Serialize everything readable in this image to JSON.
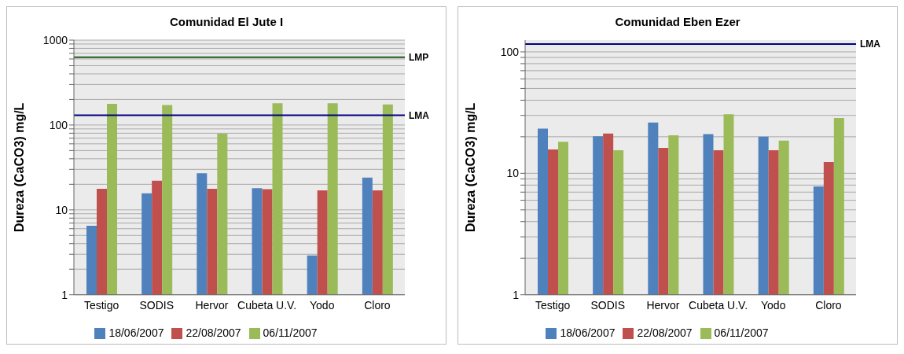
{
  "chart_data": [
    {
      "type": "bar",
      "title": "Comunidad El Jute I",
      "ylabel": "Dureza (CaCO3) mg/L",
      "categories": [
        "Testigo",
        "SODIS",
        "Hervor",
        "Cubeta U.V.",
        "Yodo",
        "Cloro"
      ],
      "series": [
        {
          "name": "18/06/2007",
          "color": "#4f81bd",
          "values": [
            6.5,
            15.7,
            27,
            18,
            2.9,
            24
          ]
        },
        {
          "name": "22/08/2007",
          "color": "#c0504d",
          "values": [
            17.7,
            22,
            17.7,
            17.5,
            17,
            17
          ]
        },
        {
          "name": "06/11/2007",
          "color": "#9bbb59",
          "values": [
            178,
            172,
            79,
            180,
            180,
            175
          ]
        }
      ],
      "log": "y",
      "ylim": [
        1,
        1000
      ],
      "yticks": [
        1,
        {
          "value": 2,
          "label": null
        },
        {
          "value": 3,
          "label": null
        },
        {
          "value": 4,
          "label": null
        },
        {
          "value": 5,
          "label": null
        },
        {
          "value": 6,
          "label": null
        },
        {
          "value": 7,
          "label": null
        },
        {
          "value": 8,
          "label": null
        },
        {
          "value": 9,
          "label": null
        },
        10,
        {
          "value": 20,
          "label": null
        },
        {
          "value": 30,
          "label": null
        },
        {
          "value": 40,
          "label": null
        },
        {
          "value": 50,
          "label": null
        },
        {
          "value": 60,
          "label": null
        },
        {
          "value": 70,
          "label": null
        },
        {
          "value": 80,
          "label": null
        },
        {
          "value": 90,
          "label": null
        },
        100,
        {
          "value": 200,
          "label": null
        },
        {
          "value": 300,
          "label": null
        },
        {
          "value": 400,
          "label": null
        },
        {
          "value": 500,
          "label": null
        },
        {
          "value": 600,
          "label": null
        },
        {
          "value": 700,
          "label": null
        },
        {
          "value": 800,
          "label": null
        },
        {
          "value": 900,
          "label": null
        },
        1000
      ],
      "ref_lines": [
        {
          "axis": "y",
          "value": 630,
          "label": "LMP",
          "color": "#1e5c1e"
        },
        {
          "axis": "y",
          "value": 130,
          "label": "LMA",
          "color": "#000080"
        }
      ],
      "grid": "y",
      "legend": "bottom"
    },
    {
      "type": "bar",
      "title": "Comunidad Eben Ezer",
      "ylabel": "Dureza (CaCO3) mg/L",
      "categories": [
        "Testigo",
        "SODIS",
        "Hervor",
        "Cubeta U.V.",
        "Yodo",
        "Cloro"
      ],
      "series": [
        {
          "name": "18/06/2007",
          "color": "#4f81bd",
          "values": [
            23.3,
            20.2,
            26.2,
            21,
            20,
            7.8
          ]
        },
        {
          "name": "22/08/2007",
          "color": "#c0504d",
          "values": [
            15.7,
            21.3,
            16.2,
            15.5,
            15.5,
            12.4
          ]
        },
        {
          "name": "06/11/2007",
          "color": "#9bbb59",
          "values": [
            18.2,
            15.5,
            20.6,
            30.6,
            18.6,
            28.6
          ]
        }
      ],
      "log": "y",
      "ylim": [
        1,
        125
      ],
      "yticks": [
        1,
        {
          "value": 2,
          "label": null
        },
        {
          "value": 3,
          "label": null
        },
        {
          "value": 4,
          "label": null
        },
        {
          "value": 5,
          "label": null
        },
        {
          "value": 6,
          "label": null
        },
        {
          "value": 7,
          "label": null
        },
        {
          "value": 8,
          "label": null
        },
        {
          "value": 9,
          "label": null
        },
        10,
        {
          "value": 20,
          "label": null
        },
        {
          "value": 30,
          "label": null
        },
        {
          "value": 40,
          "label": null
        },
        {
          "value": 50,
          "label": null
        },
        {
          "value": 60,
          "label": null
        },
        {
          "value": 70,
          "label": null
        },
        {
          "value": 80,
          "label": null
        },
        {
          "value": 90,
          "label": null
        },
        100
      ],
      "ref_lines": [
        {
          "axis": "y",
          "value": 116,
          "label": "LMA",
          "color": "#000080"
        }
      ],
      "grid": "y",
      "legend": "bottom"
    }
  ]
}
